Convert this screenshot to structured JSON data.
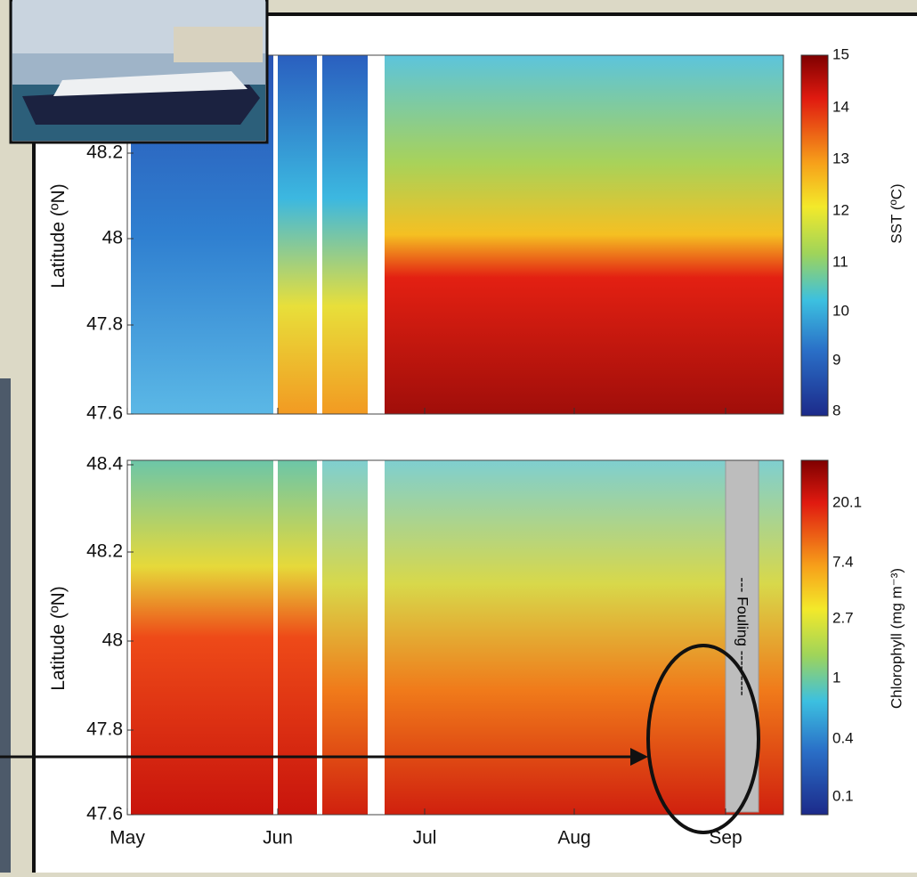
{
  "panels": [
    {
      "y_label": "Latitude (ºN)",
      "y_ticks": [
        "48.2",
        "48",
        "47.8",
        "47.6"
      ],
      "colorbar_label": "SST (ºC)",
      "colorbar_ticks": [
        "15",
        "14",
        "13",
        "12",
        "11",
        "10",
        "9",
        "8"
      ]
    },
    {
      "y_label": "Latitude (ºN)",
      "y_ticks": [
        "48.4",
        "48.2",
        "48",
        "47.8",
        "47.6"
      ],
      "colorbar_label": "Chlorophyll (mg m⁻³)",
      "colorbar_ticks": [
        "20.1",
        "7.4",
        "2.7",
        "1",
        "0.4",
        "0.1"
      ]
    }
  ],
  "x_ticks": [
    "May",
    "Jun",
    "Jul",
    "Aug",
    "Sep"
  ],
  "annotation": "--- Fouling ---------"
}
